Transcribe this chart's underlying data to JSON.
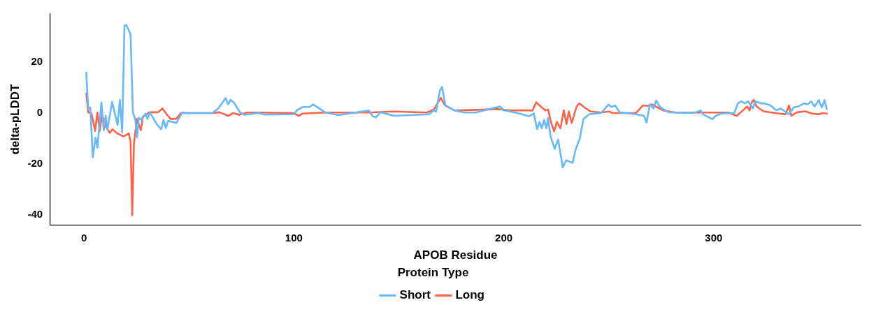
{
  "chart_data": {
    "type": "line",
    "xlabel": "APOB Residue",
    "ylabel": "delta-pLDDT",
    "legend_title": "Protein Type",
    "legend": "bottom",
    "grid": false,
    "marker": "none",
    "line_style": "solid",
    "xlim": [
      -16,
      370
    ],
    "xticks": [
      0,
      100,
      200,
      300
    ],
    "ylim": [
      -44,
      39
    ],
    "yticks": [
      -40,
      -20,
      0,
      20
    ],
    "series": [
      {
        "name": "Short",
        "color": "#66b8ff",
        "x": [
          1.1,
          2,
          3,
          4.2,
          5.5,
          6.4,
          8.3,
          9.4,
          10.3,
          11.2,
          13.4,
          16,
          17.1,
          18.2,
          19.3,
          20.2,
          22.2,
          23.3,
          24.4,
          25.3,
          26.1,
          27.4,
          29.3,
          30.2,
          31.5,
          34.6,
          36.8,
          37.9,
          39,
          40.1,
          44,
          46.8,
          50,
          61.1,
          63.9,
          67.5,
          68.7,
          69.8,
          71.6,
          74.4,
          76.6,
          83.2,
          86,
          99.8,
          101.5,
          104.2,
          107.5,
          109.2,
          114.8,
          121.4,
          135.7,
          137.4,
          139.1,
          141.3,
          147.9,
          164.5,
          166.5,
          167.8,
          169.5,
          170.6,
          172.2,
          176.7,
          181.1,
          186.6,
          193.3,
          198.2,
          199.9,
          207.6,
          212,
          214.3,
          215.9,
          217,
          218.1,
          219.2,
          220.3,
          221.1,
          222.2,
          224.2,
          225.9,
          228.1,
          229.7,
          232.8,
          234.2,
          236.2,
          238,
          240.8,
          246.3,
          249.9,
          251.3,
          253,
          255.2,
          263,
          266.8,
          268,
          269.6,
          271.3,
          272.6,
          274.6,
          278.5,
          290.5,
          293.8,
          294.9,
          299.4,
          301,
          303.8,
          309.8,
          311.5,
          313.2,
          314.8,
          316.5,
          318.7,
          319.8,
          322.6,
          324.3,
          327,
          329.8,
          332,
          333.7,
          335.9,
          338.1,
          340.3,
          343.1,
          344.8,
          346.4,
          348.1,
          350.1,
          351.5,
          352.8,
          353.9
        ],
        "values": [
          15.9,
          1.7,
          2.2,
          -17.4,
          -9.6,
          -13.7,
          4.2,
          -6.8,
          -1,
          -6.4,
          4.4,
          -4.7,
          5.2,
          -7.6,
          34.4,
          34.7,
          31,
          0.2,
          -2.3,
          -9.6,
          -1.9,
          -2.7,
          -0.2,
          -2.3,
          0.2,
          -4.3,
          -6.4,
          -2.7,
          -5.9,
          -3.1,
          -3.9,
          0.2,
          0,
          0,
          1.7,
          5.9,
          3.4,
          5.2,
          3.9,
          0.2,
          -0.7,
          0,
          -0.6,
          -0.5,
          1.1,
          2.4,
          2.4,
          3.4,
          0.3,
          -0.8,
          1,
          -1.1,
          -1.7,
          0.3,
          -1.1,
          -0.5,
          1,
          0.6,
          8.7,
          10.3,
          3,
          1,
          0.2,
          0.2,
          1.6,
          2.6,
          1.1,
          -0.2,
          -1.3,
          -0.2,
          -6.4,
          -3.5,
          -6,
          -2.7,
          -6,
          -1.9,
          -8.8,
          -14.1,
          -10.4,
          -21.4,
          -18.6,
          -19.6,
          -14.5,
          -10,
          -2.3,
          -0.5,
          0,
          3.3,
          2.4,
          3,
          0.3,
          -0.5,
          -1.1,
          -3.7,
          3.4,
          1.8,
          4.9,
          2.2,
          0.3,
          0,
          1,
          -0.5,
          -2.4,
          -1.1,
          -0.2,
          0,
          3.8,
          4.6,
          3.8,
          4.6,
          1.8,
          4.6,
          3.8,
          3.8,
          3,
          1.1,
          1.8,
          0.8,
          -0.5,
          2.2,
          2.6,
          3.8,
          3.4,
          4.6,
          2.6,
          5.1,
          2.2,
          5.1,
          1.5
        ]
      },
      {
        "name": "Long",
        "color": "#fe6247",
        "x": [
          1.1,
          2,
          3.6,
          5.3,
          6.4,
          7.5,
          8.6,
          10.3,
          12.3,
          13.6,
          15.8,
          18.9,
          21.3,
          22.2,
          23,
          23.8,
          25.2,
          27.1,
          28,
          31.3,
          35.2,
          37.4,
          39.6,
          41.2,
          44,
          46.2,
          61.1,
          64.5,
          68.7,
          71.1,
          73.9,
          77.7,
          83.2,
          99.8,
          102.3,
          104.2,
          114.8,
          135.7,
          147.3,
          163.4,
          166.7,
          170,
          172,
          176.7,
          192.1,
          197.1,
          203.2,
          209.3,
          213.7,
          215.4,
          217.6,
          219.8,
          221.1,
          222.6,
          224,
          225.3,
          227,
          228.6,
          229.9,
          231,
          232.4,
          234.6,
          236,
          238.5,
          241.3,
          246.3,
          250.2,
          251.8,
          263,
          266.3,
          268.4,
          270.6,
          273.3,
          276.1,
          281.6,
          307.1,
          311,
          313.8,
          316,
          317.1,
          318,
          319.1,
          320.4,
          323.7,
          329.2,
          334.2,
          335.9,
          337,
          339.7,
          343.6,
          346.9,
          350.2,
          351.9,
          354
        ],
        "values": [
          7.7,
          0.3,
          -0.2,
          -7.1,
          0.2,
          -7.1,
          -0.7,
          -5.1,
          -7.8,
          -6.4,
          -8,
          -9.2,
          -8,
          -11.2,
          -40.2,
          -12,
          -2.3,
          -6.8,
          -1.5,
          0.3,
          0.3,
          1.8,
          -0.7,
          -2.3,
          -2.3,
          0,
          0,
          0.3,
          -1.1,
          0,
          -0.7,
          0.2,
          0.2,
          0,
          -1.1,
          -0.2,
          0.2,
          0.2,
          0.6,
          0.2,
          1.4,
          6,
          3,
          1,
          1.4,
          1.6,
          1,
          1.1,
          1,
          4.2,
          2.6,
          1,
          1.4,
          -3.9,
          -7.2,
          -3.5,
          -6,
          1,
          -4.3,
          0.6,
          -3.9,
          2.4,
          3.8,
          2.2,
          0.6,
          0.2,
          0.6,
          0,
          0,
          3,
          2.8,
          3.4,
          2.2,
          1,
          0.2,
          0.2,
          -1.1,
          1,
          2.6,
          1,
          4.1,
          5.2,
          2.6,
          0.7,
          0,
          -0.5,
          3,
          -1.1,
          0.3,
          0.7,
          -0.2,
          -0.5,
          0,
          -0.2
        ]
      }
    ]
  }
}
